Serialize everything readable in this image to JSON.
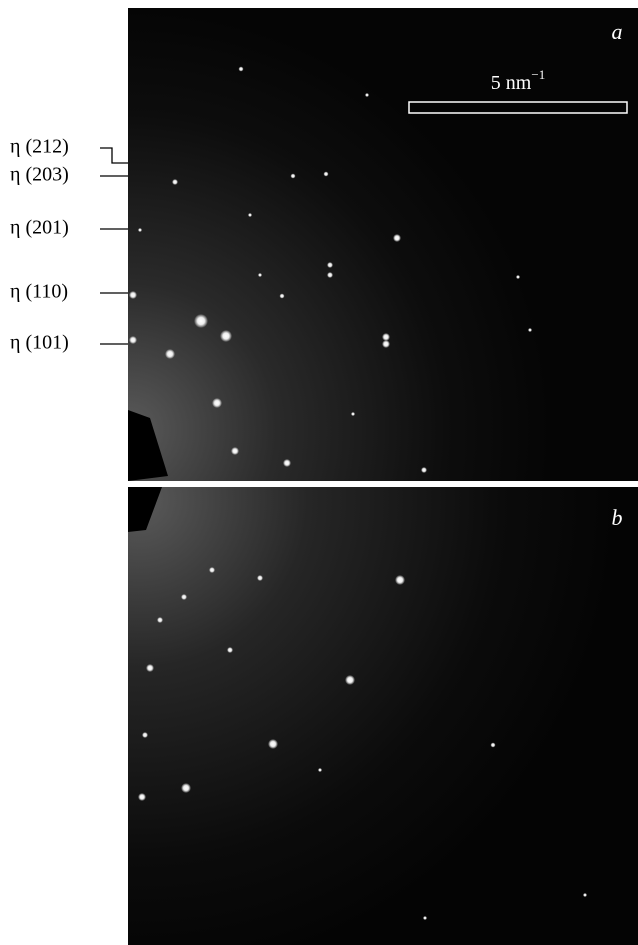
{
  "panels": [
    {
      "label": "a",
      "scale_bar": {
        "text": "5 nm",
        "exponent": "−1"
      }
    },
    {
      "label": "b"
    }
  ],
  "annotations": [
    "η (212)",
    "η (203)",
    "η (201)",
    "η (110)",
    "η (101)"
  ]
}
